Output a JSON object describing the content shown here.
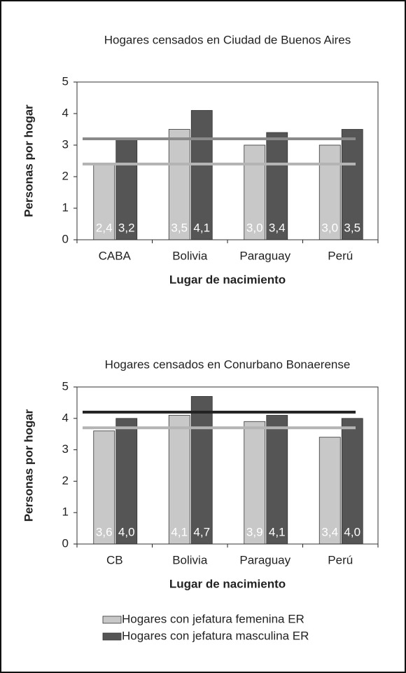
{
  "chart_data": [
    {
      "type": "bar",
      "title": "Hogares censados en Ciudad de Buenos Aires",
      "y_label": "Personas por hogar",
      "x_label": "Lugar de nacimiento",
      "categories": [
        "CABA",
        "Bolivia",
        "Paraguay",
        "Perú"
      ],
      "series": [
        {
          "color": "#c8c8c8",
          "values": [
            2.4,
            3.5,
            3.0,
            3.0
          ],
          "value_labels": [
            "2,4",
            "3,5",
            "3,0",
            "3,0"
          ]
        },
        {
          "color": "#555555",
          "values": [
            3.2,
            4.1,
            3.4,
            3.5
          ],
          "value_labels": [
            "3,2",
            "4,1",
            "3,4",
            "3,5"
          ]
        }
      ],
      "reference_lines": [
        {
          "value": 3.2,
          "color": "#8a8a8a"
        },
        {
          "value": 2.4,
          "color": "#b4b4b4"
        }
      ],
      "ylim": [
        0,
        5
      ],
      "yticks": [
        0,
        1,
        2,
        3,
        4,
        5
      ]
    },
    {
      "type": "bar",
      "title": "Hogares censados en Conurbano Bonaerense",
      "y_label": "Personas por hogar",
      "x_label": "Lugar de nacimiento",
      "categories": [
        "CB",
        "Bolivia",
        "Paraguay",
        "Perú"
      ],
      "series": [
        {
          "color": "#c8c8c8",
          "values": [
            3.6,
            4.1,
            3.9,
            3.4
          ],
          "value_labels": [
            "3,6",
            "4,1",
            "3,9",
            "3,4"
          ]
        },
        {
          "color": "#555555",
          "values": [
            4.0,
            4.7,
            4.1,
            4.0
          ],
          "value_labels": [
            "4,0",
            "4,7",
            "4,1",
            "4,0"
          ]
        }
      ],
      "reference_lines": [
        {
          "value": 4.2,
          "color": "#222222"
        },
        {
          "value": 3.7,
          "color": "#b4b4b4"
        }
      ],
      "ylim": [
        0,
        5
      ],
      "yticks": [
        0,
        1,
        2,
        3,
        4,
        5
      ]
    }
  ],
  "legend": [
    {
      "name": "Hogares con jefatura femenina ER",
      "color": "#c8c8c8"
    },
    {
      "name": "Hogares con jefatura masculina ER",
      "color": "#555555"
    }
  ]
}
